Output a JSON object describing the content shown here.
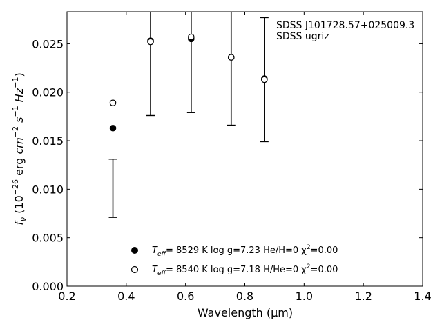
{
  "chart_data": {
    "type": "scatter",
    "xlabel": "Wavelength (μm)",
    "ylabel": "f_ν (10^-26 erg cm^-2 s^-1 Hz^-1)",
    "xlim": [
      0.2,
      1.4
    ],
    "ylim": [
      0.0,
      0.0283
    ],
    "xticks": [
      "0.2",
      "0.4",
      "0.6",
      "0.8",
      "1.0",
      "1.2",
      "1.4"
    ],
    "xtick_values": [
      0.2,
      0.4,
      0.6,
      0.8,
      1.0,
      1.2,
      1.4
    ],
    "yticks": [
      "0.000",
      "0.005",
      "0.010",
      "0.015",
      "0.020",
      "0.025"
    ],
    "ytick_values": [
      0.0,
      0.005,
      0.01,
      0.015,
      0.02,
      0.025
    ],
    "grid": false,
    "annotation": [
      "SDSS J101728.57+025009.3",
      "SDSS ugriz"
    ],
    "observed": {
      "x": [
        0.355,
        0.482,
        0.619,
        0.754,
        0.866
      ],
      "y": [
        0.0101,
        0.0295,
        0.0295,
        0.0292,
        0.0213
      ],
      "yerr_low": [
        0.003,
        0.0119,
        0.0116,
        0.0126,
        0.0064
      ],
      "yerr_high": [
        0.003,
        0.0119,
        0.0116,
        0.0126,
        0.0064
      ]
    },
    "series": [
      {
        "marker": "filled-circle",
        "x": [
          0.355,
          0.482,
          0.619,
          0.754,
          0.866
        ],
        "y": [
          0.0163,
          0.0253,
          0.0255,
          0.0236,
          0.0214
        ],
        "legend": {
          "teff_label": "T",
          "teff_sub": "eff",
          "text": "=  8529 K  log g=7.23  He/H=0  χ",
          "chi_sup": "2",
          "chi_text": "=0.00"
        }
      },
      {
        "marker": "open-circle",
        "x": [
          0.355,
          0.482,
          0.619,
          0.754,
          0.866
        ],
        "y": [
          0.0189,
          0.0252,
          0.0257,
          0.0236,
          0.0213
        ],
        "legend": {
          "teff_label": "T",
          "teff_sub": "eff",
          "text": "=  8540 K  log g=7.18  H/He=0  χ",
          "chi_sup": "2",
          "chi_text": "=0.00"
        }
      }
    ]
  }
}
